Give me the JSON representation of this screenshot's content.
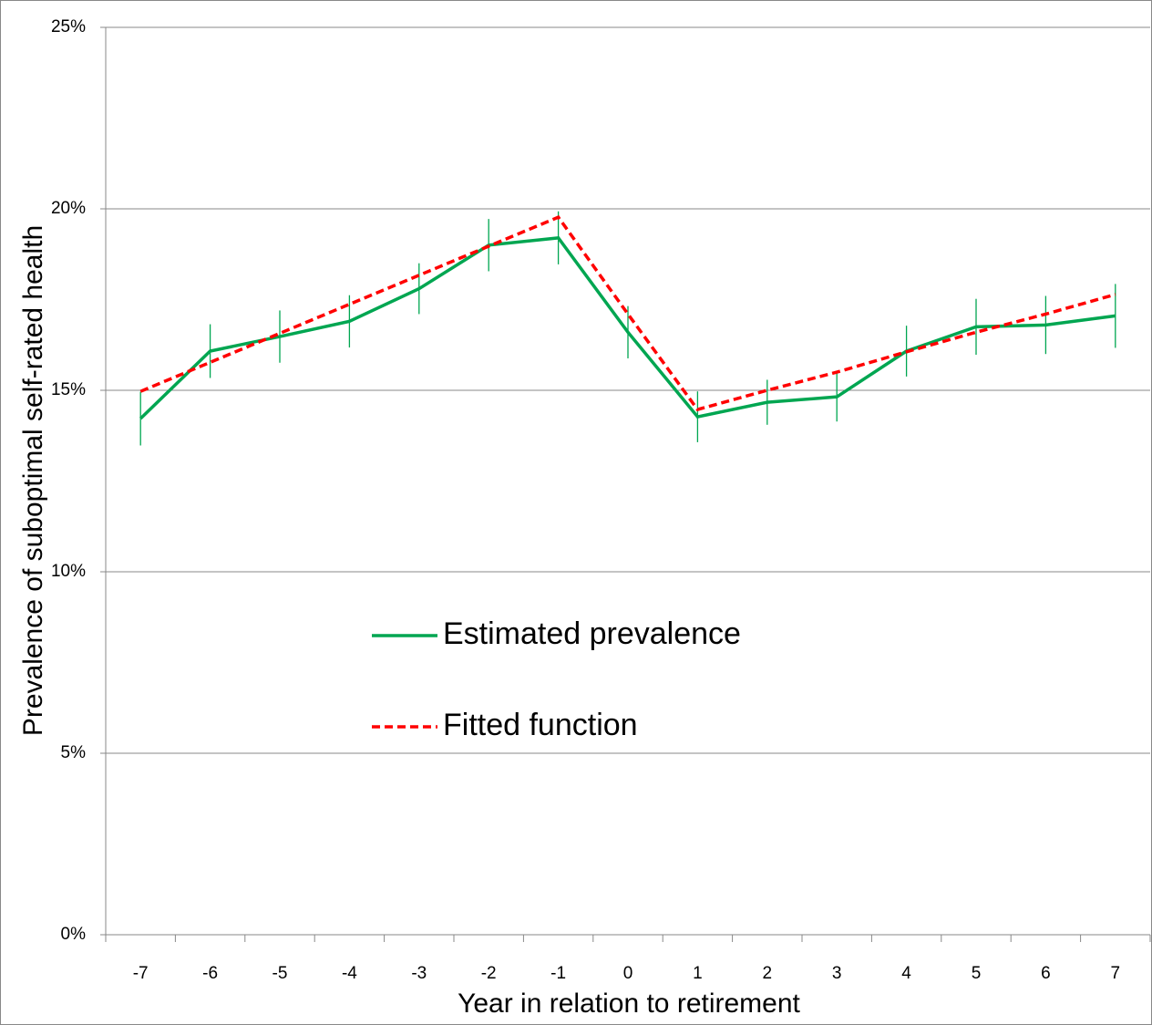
{
  "chart_data": {
    "type": "line",
    "x_label": "Year in relation to retirement",
    "y_label": "Prevalence of suboptimal self-rated health",
    "categories": [
      "-7",
      "-6",
      "-5",
      "-4",
      "-3",
      "-2",
      "-1",
      "0",
      "1",
      "2",
      "3",
      "4",
      "5",
      "6",
      "7"
    ],
    "series": [
      {
        "name": "Estimated prevalence",
        "color": "#00a651",
        "dash": false,
        "values": [
          14.22,
          16.08,
          16.48,
          16.9,
          17.8,
          19.0,
          19.2,
          16.6,
          14.27,
          14.67,
          14.82,
          16.08,
          16.75,
          16.8,
          17.05
        ],
        "errors": [
          0.74,
          0.74,
          0.72,
          0.72,
          0.7,
          0.72,
          0.73,
          0.72,
          0.7,
          0.62,
          0.68,
          0.7,
          0.77,
          0.8,
          0.88
        ]
      },
      {
        "name": "Fitted function",
        "color": "#ff0000",
        "dash": true,
        "values": [
          14.97,
          15.77,
          16.57,
          17.37,
          18.17,
          18.97,
          19.77,
          17.1,
          14.47,
          15.0,
          15.5,
          16.06,
          16.6,
          17.1,
          17.64
        ]
      }
    ],
    "ylim": [
      0,
      25
    ],
    "yticks": [
      {
        "value": 0,
        "label": "0%"
      },
      {
        "value": 5,
        "label": "5%"
      },
      {
        "value": 10,
        "label": "10%"
      },
      {
        "value": 15,
        "label": "15%"
      },
      {
        "value": 20,
        "label": "20%"
      },
      {
        "value": 25,
        "label": "25%"
      }
    ],
    "grid": true
  }
}
